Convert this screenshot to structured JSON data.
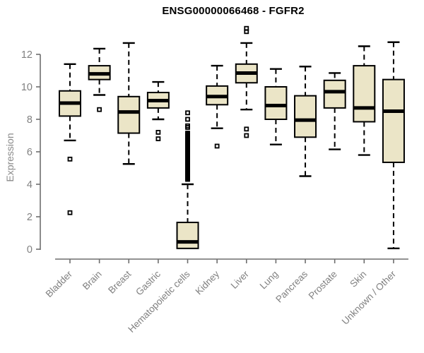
{
  "chart_data": {
    "type": "boxplot",
    "title": "ENSG00000066468 - FGFR2",
    "xlabel": "",
    "ylabel": "Expression",
    "ylim": [
      0,
      12
    ],
    "yticks": [
      0,
      2,
      4,
      6,
      8,
      10,
      12
    ],
    "grid": false,
    "legend": "none",
    "categories": [
      "Bladder",
      "Brain",
      "Breast",
      "Gastric",
      "Hematopoietic cells",
      "Kidney",
      "Liver",
      "Lung",
      "Pancreas",
      "Prostate",
      "Skin",
      "Unknown / Other"
    ],
    "boxes": [
      {
        "label": "Bladder",
        "whisker_low": 6.7,
        "q1": 8.2,
        "median": 9.0,
        "q3": 9.75,
        "whisker_high": 11.4,
        "outliers": [
          5.55,
          2.25
        ]
      },
      {
        "label": "Brain",
        "whisker_low": 9.5,
        "q1": 10.45,
        "median": 10.8,
        "q3": 11.3,
        "whisker_high": 12.35,
        "outliers": [
          8.6
        ]
      },
      {
        "label": "Breast",
        "whisker_low": 5.25,
        "q1": 7.15,
        "median": 8.45,
        "q3": 9.4,
        "whisker_high": 12.7,
        "outliers": []
      },
      {
        "label": "Gastric",
        "whisker_low": 8.0,
        "q1": 8.7,
        "median": 9.15,
        "q3": 9.65,
        "whisker_high": 10.3,
        "outliers": [
          7.2,
          6.8
        ]
      },
      {
        "label": "Hematopoietic cells",
        "whisker_low": 0.05,
        "q1": 0.05,
        "median": 0.45,
        "q3": 1.65,
        "whisker_high": 4.0,
        "outliers": [
          8.4,
          8.0,
          7.6,
          7.5,
          7.15,
          7.1,
          7.05,
          7.0,
          6.95,
          6.9,
          6.85,
          6.8,
          6.75,
          6.7,
          6.65,
          6.6,
          6.55,
          6.5,
          6.45,
          6.4,
          6.35,
          6.3,
          6.25,
          6.2,
          6.15,
          6.1,
          6.05,
          6.0,
          5.95,
          5.9,
          5.85,
          5.8,
          5.75,
          5.7,
          5.65,
          5.6,
          5.55,
          5.5,
          5.45,
          5.4,
          5.35,
          5.3,
          5.25,
          5.2,
          5.15,
          5.1,
          5.05,
          5.0,
          4.95,
          4.9,
          4.85,
          4.8,
          4.75,
          4.7,
          4.65,
          4.6,
          4.55,
          4.5,
          4.45,
          4.4,
          4.35,
          4.3
        ]
      },
      {
        "label": "Kidney",
        "whisker_low": 7.45,
        "q1": 8.9,
        "median": 9.4,
        "q3": 10.05,
        "whisker_high": 11.3,
        "outliers": [
          6.35
        ]
      },
      {
        "label": "Liver",
        "whisker_low": 8.6,
        "q1": 10.25,
        "median": 10.85,
        "q3": 11.4,
        "whisker_high": 12.7,
        "outliers": [
          13.6,
          13.4,
          7.4,
          7.0
        ]
      },
      {
        "label": "Lung",
        "whisker_low": 6.45,
        "q1": 8.0,
        "median": 8.85,
        "q3": 10.0,
        "whisker_high": 11.1,
        "outliers": []
      },
      {
        "label": "Pancreas",
        "whisker_low": 4.5,
        "q1": 6.9,
        "median": 7.95,
        "q3": 9.45,
        "whisker_high": 11.25,
        "outliers": []
      },
      {
        "label": "Prostate",
        "whisker_low": 6.15,
        "q1": 8.7,
        "median": 9.7,
        "q3": 10.4,
        "whisker_high": 10.85,
        "outliers": []
      },
      {
        "label": "Skin",
        "whisker_low": 5.8,
        "q1": 7.85,
        "median": 8.7,
        "q3": 11.3,
        "whisker_high": 12.5,
        "outliers": []
      },
      {
        "label": "Unknown / Other",
        "whisker_low": 0.05,
        "q1": 5.35,
        "median": 8.5,
        "q3": 10.45,
        "whisker_high": 12.75,
        "outliers": []
      }
    ],
    "colors": {
      "box_fill": "#EBE5C7",
      "box_border": "#000000",
      "median": "#000000",
      "whisker": "#000000",
      "outlier": "#000000",
      "axis_line": "#6e6e6e",
      "axis_text": "#808080",
      "title_text": "#000000"
    }
  }
}
